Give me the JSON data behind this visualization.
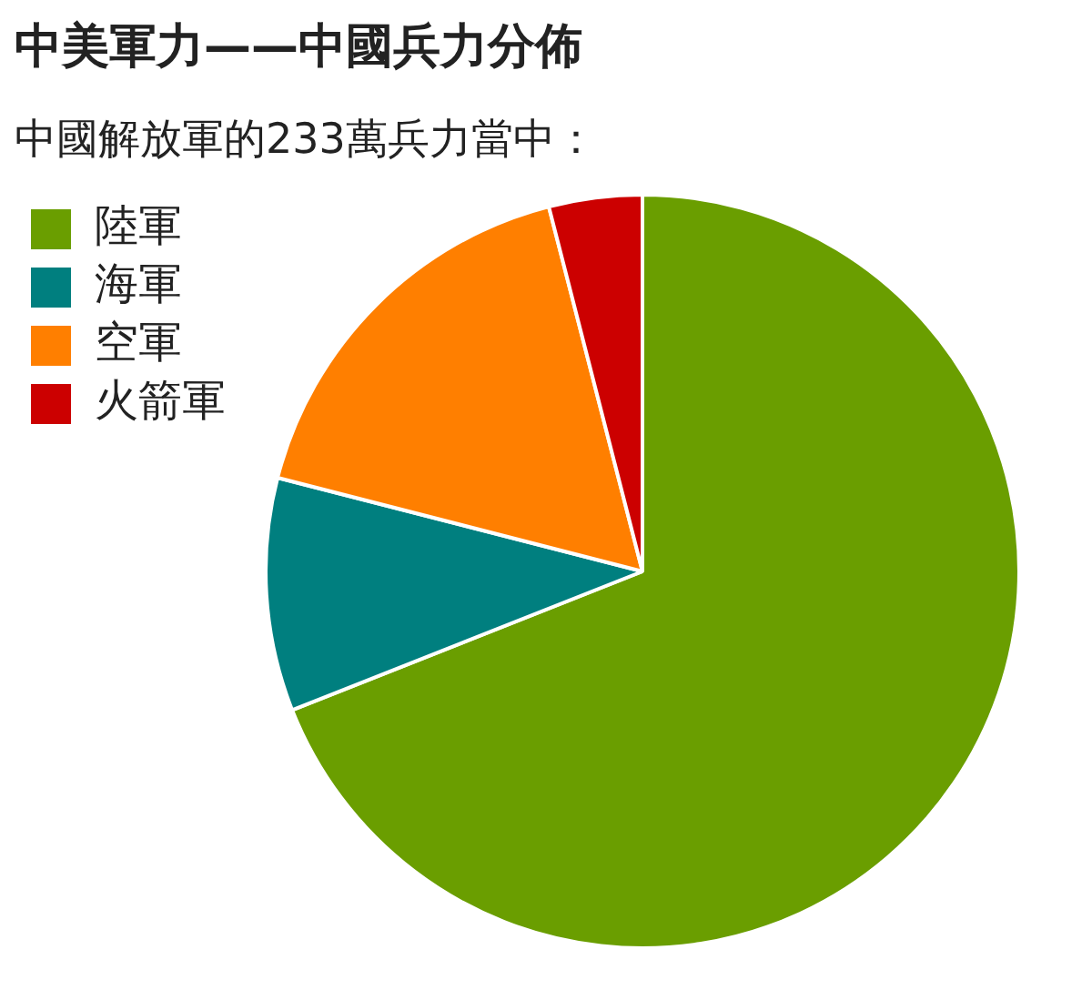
{
  "chart_data": {
    "type": "pie",
    "title": "中美軍力——中國兵力分佈",
    "subtitle": "中國解放軍的233萬兵力當中：",
    "categories": [
      "陸軍",
      "海軍",
      "空軍",
      "火箭軍"
    ],
    "values": [
      69,
      10,
      17,
      4
    ],
    "colors": [
      "#6a9e00",
      "#007f7f",
      "#ff7f00",
      "#cc0000"
    ],
    "legend": "top left"
  }
}
